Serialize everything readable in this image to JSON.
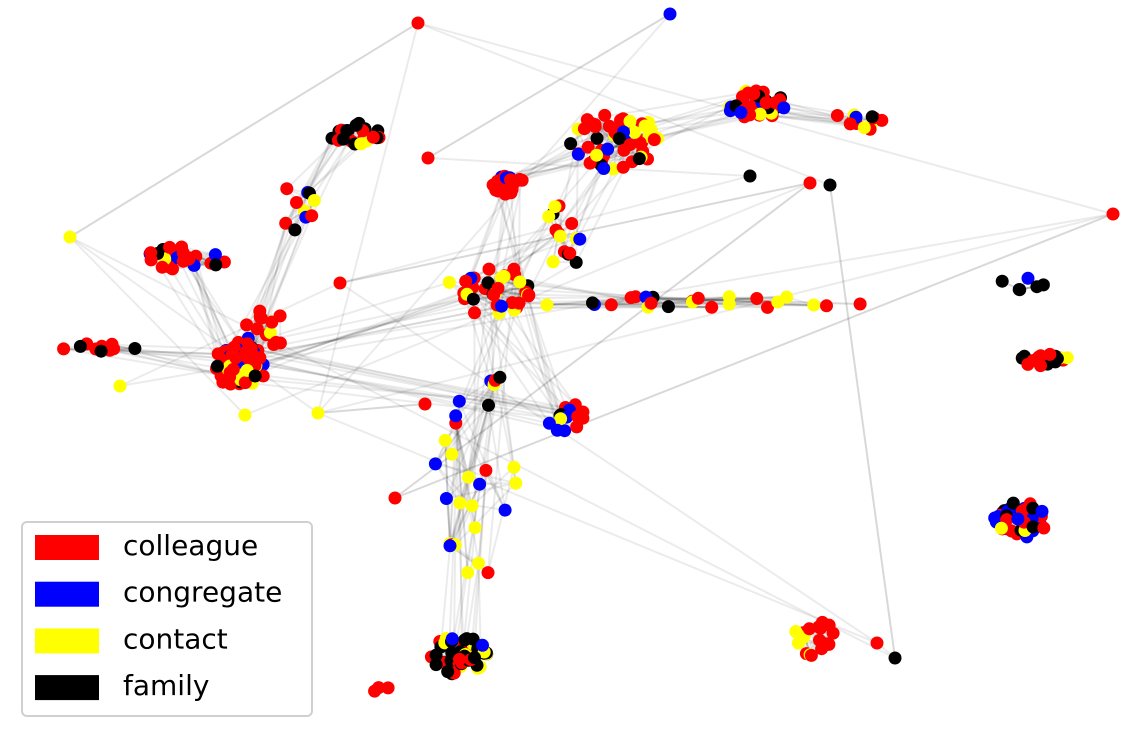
{
  "legend": {
    "items": [
      {
        "label": "colleague",
        "color": "#ff0000"
      },
      {
        "label": "congregate",
        "color": "#0000ff"
      },
      {
        "label": "contact",
        "color": "#ffff00"
      },
      {
        "label": "family",
        "color": "#000000"
      }
    ]
  }
}
